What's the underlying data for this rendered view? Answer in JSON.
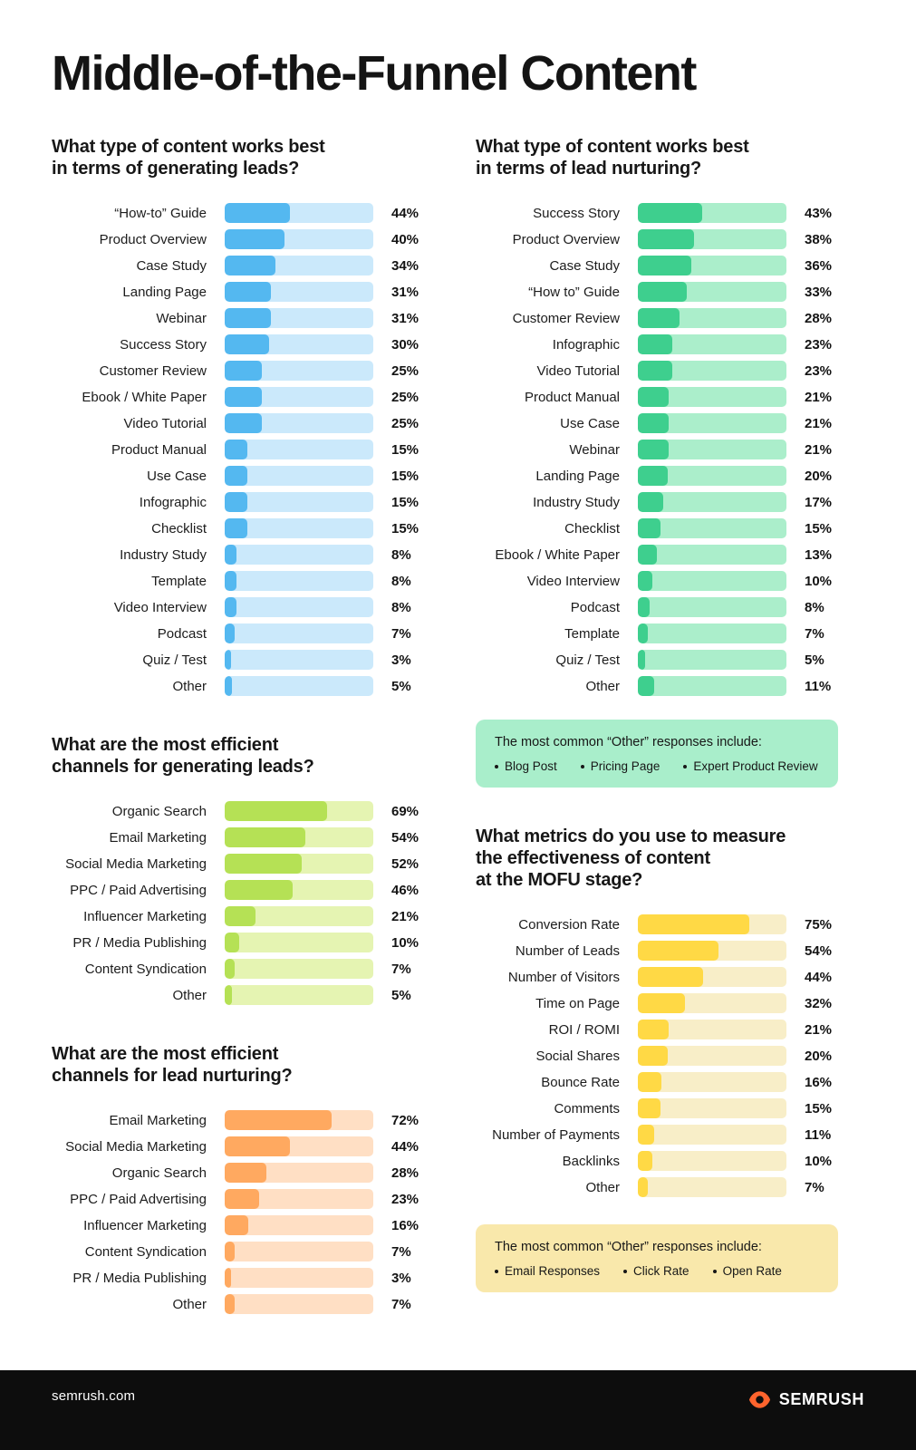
{
  "page_title": "Middle-of-the-Funnel Content",
  "chart_data": [
    {
      "type": "bar",
      "title_lines": [
        "What type of content works best",
        "in terms of generating leads?"
      ],
      "categories": [
        "“How-to” Guide",
        "Product Overview",
        "Case Study",
        "Landing Page",
        "Webinar",
        "Success Story",
        "Customer Review",
        "Ebook / White Paper",
        "Video Tutorial",
        "Product Manual",
        "Use Case",
        "Infographic",
        "Checklist",
        "Industry Study",
        "Template",
        "Video Interview",
        "Podcast",
        "Quiz / Test",
        "Other"
      ],
      "values": [
        44,
        40,
        34,
        31,
        31,
        30,
        25,
        25,
        25,
        15,
        15,
        15,
        15,
        8,
        8,
        8,
        7,
        3,
        5
      ],
      "value_suffix": "%",
      "xlim": [
        0,
        100
      ],
      "fill_color": "#54b8f0",
      "track_color": "#cbe9fb"
    },
    {
      "type": "bar",
      "title_lines": [
        "What type of content works best",
        "in terms of lead nurturing?"
      ],
      "categories": [
        "Success Story",
        "Product Overview",
        "Case Study",
        "“How to” Guide",
        "Customer Review",
        "Infographic",
        "Video Tutorial",
        "Product Manual",
        "Use Case",
        "Webinar",
        "Landing Page",
        "Industry Study",
        "Checklist",
        "Ebook / White Paper",
        "Video Interview",
        "Podcast",
        "Template",
        "Quiz / Test",
        "Other"
      ],
      "values": [
        43,
        38,
        36,
        33,
        28,
        23,
        23,
        21,
        21,
        21,
        20,
        17,
        15,
        13,
        10,
        8,
        7,
        5,
        11
      ],
      "value_suffix": "%",
      "xlim": [
        0,
        100
      ],
      "fill_color": "#3ecf8e",
      "track_color": "#abeecb"
    },
    {
      "type": "bar",
      "title_lines": [
        "What are the most efficient",
        "channels for generating leads?"
      ],
      "categories": [
        "Organic Search",
        "Email Marketing",
        "Social Media Marketing",
        "PPC / Paid Advertising",
        "Influencer Marketing",
        "PR / Media Publishing",
        "Content Syndication",
        "Other"
      ],
      "values": [
        69,
        54,
        52,
        46,
        21,
        10,
        7,
        5
      ],
      "value_suffix": "%",
      "xlim": [
        0,
        100
      ],
      "fill_color": "#b5e155",
      "track_color": "#e5f4b2"
    },
    {
      "type": "bar",
      "title_lines": [
        "What are the most efficient",
        "channels for lead nurturing?"
      ],
      "categories": [
        "Email Marketing",
        "Social Media Marketing",
        "Organic Search",
        "PPC / Paid Advertising",
        "Influencer Marketing",
        "Content Syndication",
        "PR / Media Publishing",
        "Other"
      ],
      "values": [
        72,
        44,
        28,
        23,
        16,
        7,
        3,
        7
      ],
      "value_suffix": "%",
      "xlim": [
        0,
        100
      ],
      "fill_color": "#ffa960",
      "track_color": "#ffdfc4"
    },
    {
      "type": "bar",
      "title_lines": [
        "What metrics do you use to measure",
        "the effectiveness of content",
        "at the MOFU stage?"
      ],
      "categories": [
        "Conversion Rate",
        "Number of Leads",
        "Number of Visitors",
        "Time on Page",
        "ROI / ROMI",
        "Social Shares",
        "Bounce Rate",
        "Comments",
        "Number of Payments",
        "Backlinks",
        "Other"
      ],
      "values": [
        75,
        54,
        44,
        32,
        21,
        20,
        16,
        15,
        11,
        10,
        7
      ],
      "value_suffix": "%",
      "xlim": [
        0,
        100
      ],
      "fill_color": "#ffd945",
      "track_color": "#f8eec8"
    }
  ],
  "notes": [
    {
      "heading": "The most common “Other” responses include:",
      "items": [
        "Blog Post",
        "Pricing Page",
        "Expert Product Review"
      ],
      "bg": "#a9eecb"
    },
    {
      "heading": "The most common “Other” responses include:",
      "items": [
        "Email Responses",
        "Click Rate",
        "Open Rate"
      ],
      "bg": "#f9e8ab"
    }
  ],
  "footer": {
    "site": "semrush.com",
    "brand": "SEMRUSH",
    "brand_color": "#ff642d"
  }
}
